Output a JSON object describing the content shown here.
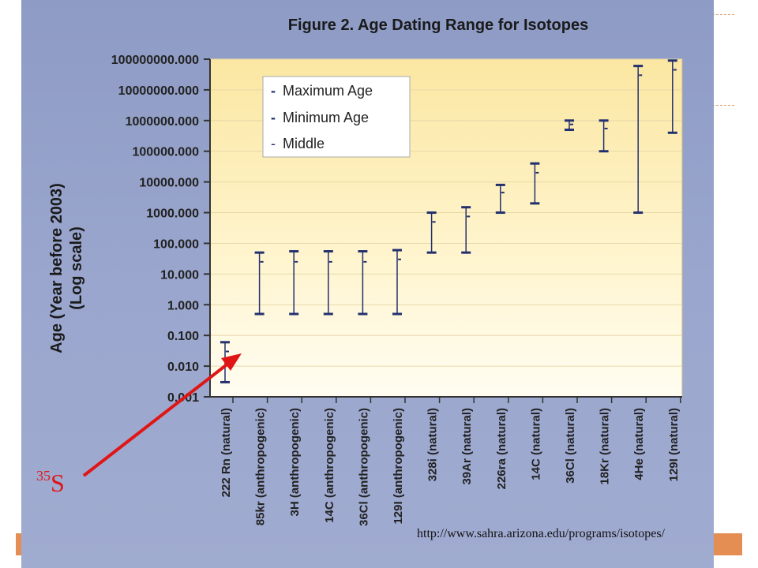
{
  "chart_data": {
    "type": "errorbar",
    "title": "Figure 2. Age Dating Range for Isotopes",
    "ylabel": "Age (Year before 2003)",
    "ylabel_sub": "(Log  scale)",
    "yscale": "log",
    "ylim": [
      0.001,
      100000000
    ],
    "yticks": [
      "100000000.000",
      "10000000.000",
      "1000000.000",
      "100000.000",
      "10000.000",
      "1000.000",
      "100.000",
      "10.000",
      "1.000",
      "0.100",
      "0.010",
      "0.001"
    ],
    "grid": true,
    "legend": {
      "placement": "top-left",
      "entries": [
        {
          "marker": "-",
          "label": "Maximum Age"
        },
        {
          "marker": "-",
          "label": "Minimum Age"
        },
        {
          "marker": "-",
          "label": "Middle"
        }
      ]
    },
    "categories": [
      "222 Rn (natural)",
      "85kr (anthropogenic)",
      "3H (anthropogenic)",
      "14C (anthropogenic)",
      "36Cl (anthropogenic)",
      "129I (anthropogenic)",
      "328i (natural)",
      "39Ar (natural)",
      "226ra (natural)",
      "14C (natural)",
      "36Cl (natural)",
      "18Kr (natural)",
      "4He (natural)",
      "129I (natural)"
    ],
    "series": [
      {
        "name": "Maximum Age",
        "values": [
          0.06,
          50,
          55,
          55,
          55,
          60,
          1000,
          1500,
          8000,
          40000,
          1000000,
          1000000,
          60000000,
          90000000
        ]
      },
      {
        "name": "Minimum Age",
        "values": [
          0.003,
          0.5,
          0.5,
          0.5,
          0.5,
          0.5,
          50,
          50,
          1000,
          2000,
          500000,
          100000,
          1000,
          400000
        ]
      },
      {
        "name": "Middle",
        "values": [
          0.03,
          25,
          25,
          25,
          25,
          30,
          500,
          750,
          4500,
          20000,
          750000,
          550000,
          30000000,
          45000000
        ]
      }
    ]
  },
  "annotations": {
    "arrow_label_base": "S",
    "arrow_label_sup": "35",
    "source_url": "http://www.sahra.arizona.edu/programs/isotopes/"
  },
  "colors": {
    "panel_background": "#98a4cc",
    "plot_background_top": "#fbe9a6",
    "plot_background_bottom": "#fffdf0",
    "errorbar": "#23306e",
    "axis_text": "#222222",
    "arrow": "#e01616",
    "slide_accent": "#e07a35"
  }
}
